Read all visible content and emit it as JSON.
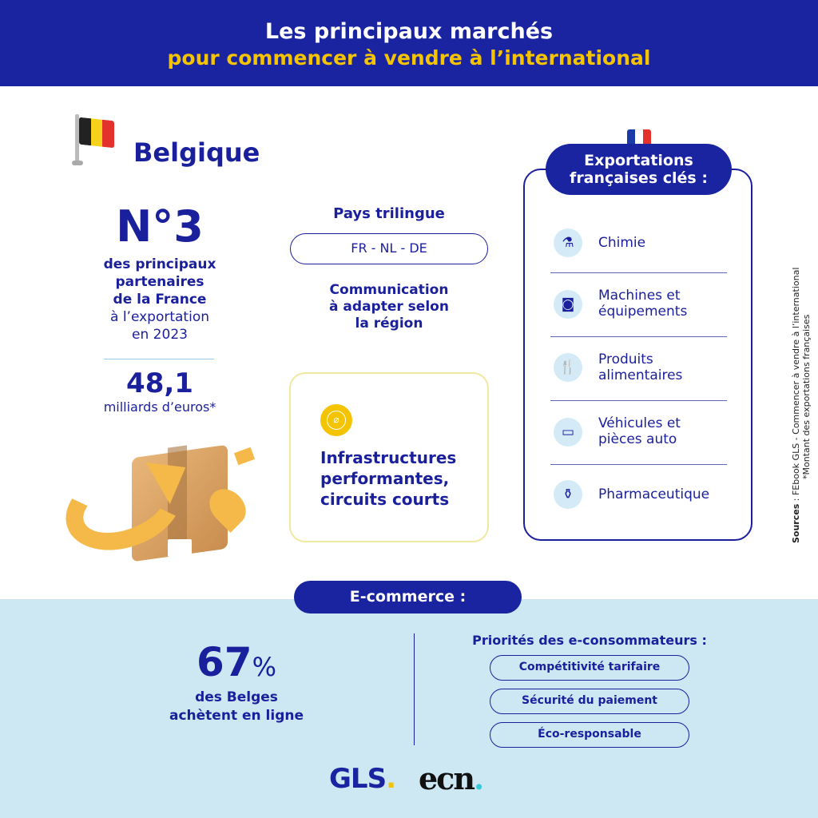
{
  "header": {
    "title": "Les principaux marchés",
    "subtitle": "pour commencer à vendre à l’international"
  },
  "country": {
    "name": "Belgique",
    "rank": "N°3",
    "rank_desc": [
      "des principaux",
      "partenaires",
      "de la France",
      "à l’exportation",
      "en 2023"
    ],
    "amount": "48,1",
    "amount_unit": "milliards d’euros*"
  },
  "languages": {
    "title": "Pays trilingue",
    "value": "FR - NL - DE",
    "note": [
      "Communication",
      "à adapter selon",
      "la région"
    ]
  },
  "infra": {
    "text": [
      "Infrastructures",
      "performantes,",
      "circuits courts"
    ]
  },
  "exports": {
    "title": [
      "Exportations",
      "françaises clés :"
    ],
    "items": [
      {
        "icon": "flask-icon",
        "label": [
          "Chimie"
        ]
      },
      {
        "icon": "washing-machine-icon",
        "label": [
          "Machines et",
          "équipements"
        ]
      },
      {
        "icon": "cutlery-icon",
        "label": [
          "Produits",
          "alimentaires"
        ]
      },
      {
        "icon": "bus-icon",
        "label": [
          "Véhicules et",
          "pièces auto"
        ]
      },
      {
        "icon": "bottle-icon",
        "label": [
          "Pharmaceutique"
        ]
      }
    ]
  },
  "sources": {
    "label": "Sources",
    "text": " : FEbook GLS -  Commencer à vendre à l’international",
    "note": "*Montant des exportations françaises"
  },
  "ecommerce": {
    "title": "E-commerce :",
    "percent": "67",
    "percent_sign": "%",
    "desc": [
      "des Belges",
      "achètent en ligne"
    ],
    "priorities_title": "Priorités des e-consommateurs :",
    "priorities": [
      "Compétitivité tarifaire",
      "Sécurité du paiement",
      "Éco-responsable"
    ]
  },
  "logos": {
    "gls": "GLS",
    "ecn": "ecn"
  },
  "colors": {
    "navy": "#1a1f9c",
    "yellow": "#f5c400",
    "light_blue": "#cde8f3"
  }
}
